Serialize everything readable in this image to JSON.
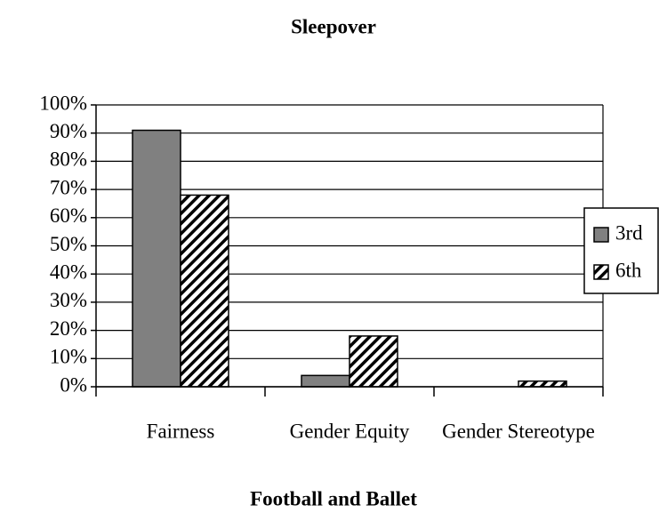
{
  "chart_data": {
    "type": "bar",
    "title": "Sleepover",
    "x_label": "Football and Ballet",
    "categories": [
      "Fairness",
      "Gender Equity",
      "Gender Stereotype"
    ],
    "series": [
      {
        "name": "3rd",
        "color": "#808080",
        "values": [
          91,
          4,
          0
        ]
      },
      {
        "name": "6th",
        "color": "#000000",
        "hatch": true,
        "values": [
          68,
          18,
          2
        ]
      }
    ],
    "ylim": [
      0,
      100
    ],
    "yticks": [
      {
        "value": 0,
        "label": "0%"
      },
      {
        "value": 10,
        "label": "10%"
      },
      {
        "value": 20,
        "label": "20%"
      },
      {
        "value": 30,
        "label": "30%"
      },
      {
        "value": 40,
        "label": "40%"
      },
      {
        "value": 50,
        "label": "50%"
      },
      {
        "value": 60,
        "label": "60%"
      },
      {
        "value": 70,
        "label": "70%"
      },
      {
        "value": 80,
        "label": "80%"
      },
      {
        "value": 90,
        "label": "90%"
      },
      {
        "value": 100,
        "label": "100%"
      }
    ],
    "grid": true,
    "legend": "right"
  }
}
